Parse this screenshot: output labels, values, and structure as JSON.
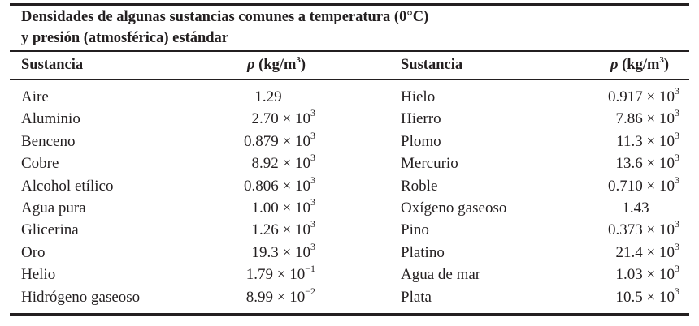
{
  "title": {
    "line1": "Densidades de algunas sustancias comunes a temperatura (0°C)",
    "line2": "y presión (atmosférica) estándar"
  },
  "headers": {
    "substance": "Sustancia",
    "density_symbol": "ρ",
    "density_unit": "(kg/m",
    "density_unit_exp": "3",
    "density_unit_close": ")"
  },
  "rows_left": [
    {
      "name": "Aire",
      "mantissa": "1.29",
      "exp": null
    },
    {
      "name": "Aluminio",
      "mantissa": "2.70",
      "exp": "3"
    },
    {
      "name": "Benceno",
      "mantissa": "0.879",
      "exp": "3"
    },
    {
      "name": "Cobre",
      "mantissa": "8.92",
      "exp": "3"
    },
    {
      "name": "Alcohol etílico",
      "mantissa": "0.806",
      "exp": "3"
    },
    {
      "name": "Agua pura",
      "mantissa": "1.00",
      "exp": "3"
    },
    {
      "name": "Glicerina",
      "mantissa": "1.26",
      "exp": "3"
    },
    {
      "name": "Oro",
      "mantissa": "19.3",
      "exp": "3"
    },
    {
      "name": "Helio",
      "mantissa": "1.79",
      "exp": "−1"
    },
    {
      "name": "Hidrógeno gaseoso",
      "mantissa": "8.99",
      "exp": "−2"
    }
  ],
  "rows_right": [
    {
      "name": "Hielo",
      "mantissa": "0.917",
      "exp": "3"
    },
    {
      "name": "Hierro",
      "mantissa": "7.86",
      "exp": "3"
    },
    {
      "name": "Plomo",
      "mantissa": "11.3",
      "exp": "3"
    },
    {
      "name": "Mercurio",
      "mantissa": "13.6",
      "exp": "3"
    },
    {
      "name": "Roble",
      "mantissa": "0.710",
      "exp": "3"
    },
    {
      "name": "Oxígeno gaseoso",
      "mantissa": "1.43",
      "exp": null
    },
    {
      "name": "Pino",
      "mantissa": "0.373",
      "exp": "3"
    },
    {
      "name": "Platino",
      "mantissa": "21.4",
      "exp": "3"
    },
    {
      "name": "Agua de mar",
      "mantissa": "1.03",
      "exp": "3"
    },
    {
      "name": "Plata",
      "mantissa": "10.5",
      "exp": "3"
    }
  ],
  "times_ten": " × 10"
}
